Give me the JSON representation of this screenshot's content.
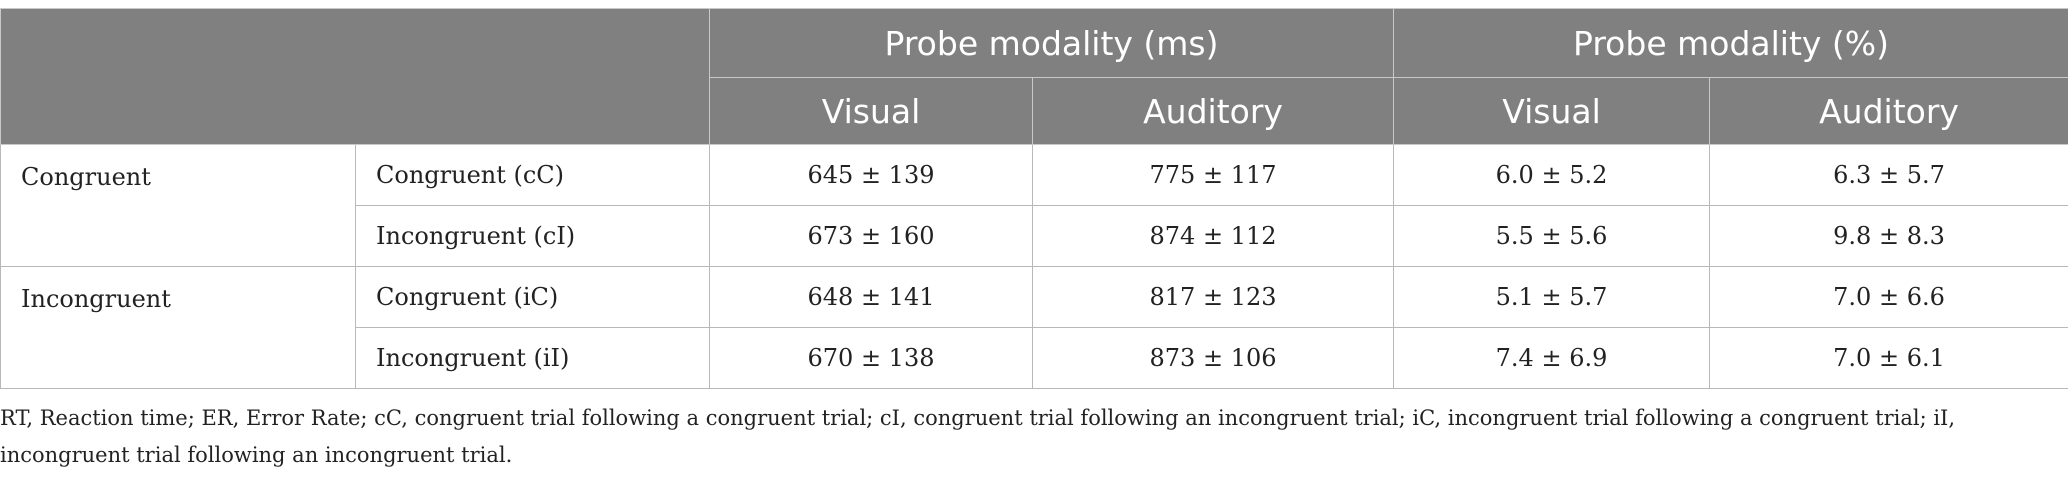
{
  "table": {
    "header": {
      "group_ms": "Probe modality (ms)",
      "group_pct": "Probe modality (%)",
      "sub": [
        "Visual",
        "Auditory",
        "Visual",
        "Auditory"
      ]
    },
    "groups": [
      {
        "label": "Congruent",
        "rows": [
          {
            "condition": "Congruent (cC)",
            "values": [
              "645 ± 139",
              "775 ± 117",
              "6.0 ± 5.2",
              "6.3 ± 5.7"
            ]
          },
          {
            "condition": "Incongruent (cI)",
            "values": [
              "673 ± 160",
              "874 ± 112",
              "5.5 ± 5.6",
              "9.8 ± 8.3"
            ]
          }
        ]
      },
      {
        "label": "Incongruent",
        "rows": [
          {
            "condition": "Congruent (iC)",
            "values": [
              "648 ± 141",
              "817 ± 123",
              "5.1 ± 5.7",
              "7.0 ± 6.6"
            ]
          },
          {
            "condition": "Incongruent (iI)",
            "values": [
              "670 ± 138",
              "873 ± 106",
              "7.4 ± 6.9",
              "7.0 ± 6.1"
            ]
          }
        ]
      }
    ]
  },
  "footnote": "RT, Reaction time; ER, Error Rate; cC, congruent trial following a congruent trial; cI, congruent trial following an incongruent trial; iC, incongruent trial following a congruent trial; iI, incongruent trial following an incongruent trial.",
  "colors": {
    "header_bg": "#808080",
    "header_text": "#ffffff",
    "border": "#b8b8b8"
  }
}
